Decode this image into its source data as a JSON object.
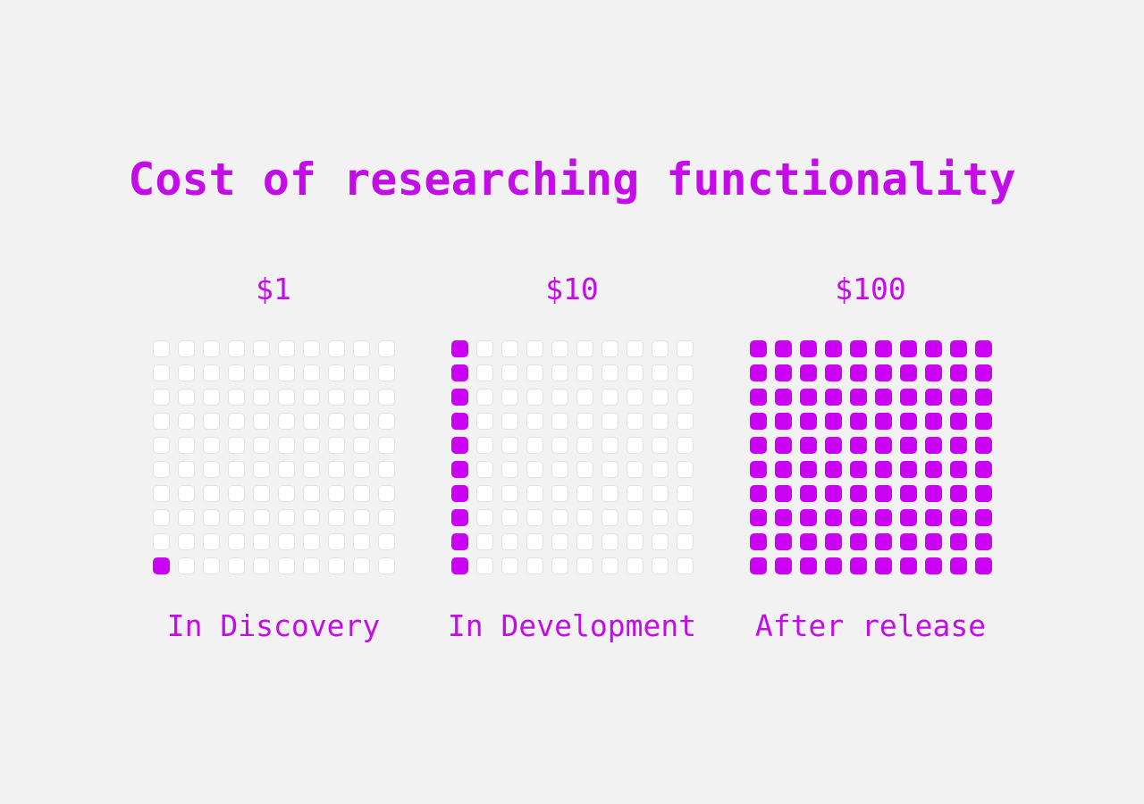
{
  "title": "Cost of researching functionality",
  "colors": {
    "background": "#f2f2f2",
    "accent": "#c40ce8",
    "cell_filled": "#ca01f2",
    "cell_empty": "#ffffff",
    "cell_border": "#e1e1e5"
  },
  "chart_data": {
    "type": "waffle",
    "title": "Cost of researching functionality",
    "rows": 10,
    "cols": 10,
    "fill_order": "bottom-left, column by column upward",
    "groups": [
      {
        "cost_label": "$1",
        "value": 1,
        "filled_cells": 1,
        "total_cells": 100,
        "stage_label": "In Discovery"
      },
      {
        "cost_label": "$10",
        "value": 10,
        "filled_cells": 10,
        "total_cells": 100,
        "stage_label": "In Development"
      },
      {
        "cost_label": "$100",
        "value": 100,
        "filled_cells": 100,
        "total_cells": 100,
        "stage_label": "After release"
      }
    ]
  }
}
